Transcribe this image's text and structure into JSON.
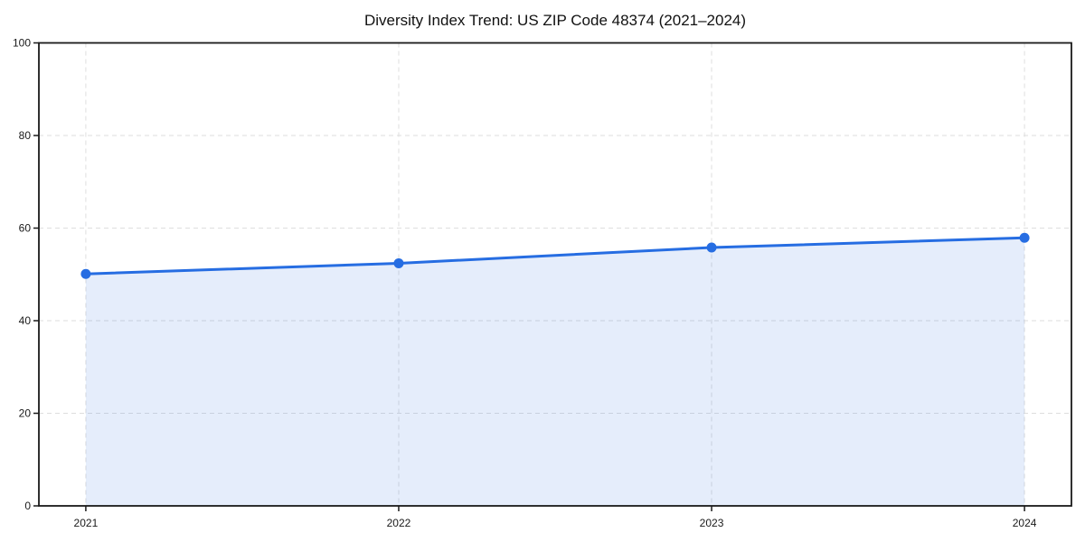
{
  "chart_data": {
    "type": "area",
    "title": "Diversity Index Trend: US ZIP Code 48374 (2021–2024)",
    "x": [
      2021,
      2022,
      2023,
      2024
    ],
    "x_tick_labels": [
      "2021",
      "2022",
      "2023",
      "2024"
    ],
    "series": [
      {
        "name": "Diversity Index",
        "values": [
          50.1,
          52.4,
          55.8,
          57.9
        ]
      }
    ],
    "xlabel": "",
    "ylabel": "",
    "ylim": [
      0,
      100
    ],
    "yticks": [
      0,
      20,
      40,
      60,
      80,
      100
    ],
    "y_tick_labels": [
      "0",
      "20",
      "40",
      "60",
      "80",
      "100"
    ],
    "grid": "dashed, horizontal and vertical",
    "legend": "none",
    "colors": {
      "line": "#266de2",
      "marker": "#266de2",
      "fill": "rgba(38,109,226,0.12)",
      "grid": "#dedede",
      "axis": "#1a1a1a",
      "background": "#ffffff"
    }
  }
}
